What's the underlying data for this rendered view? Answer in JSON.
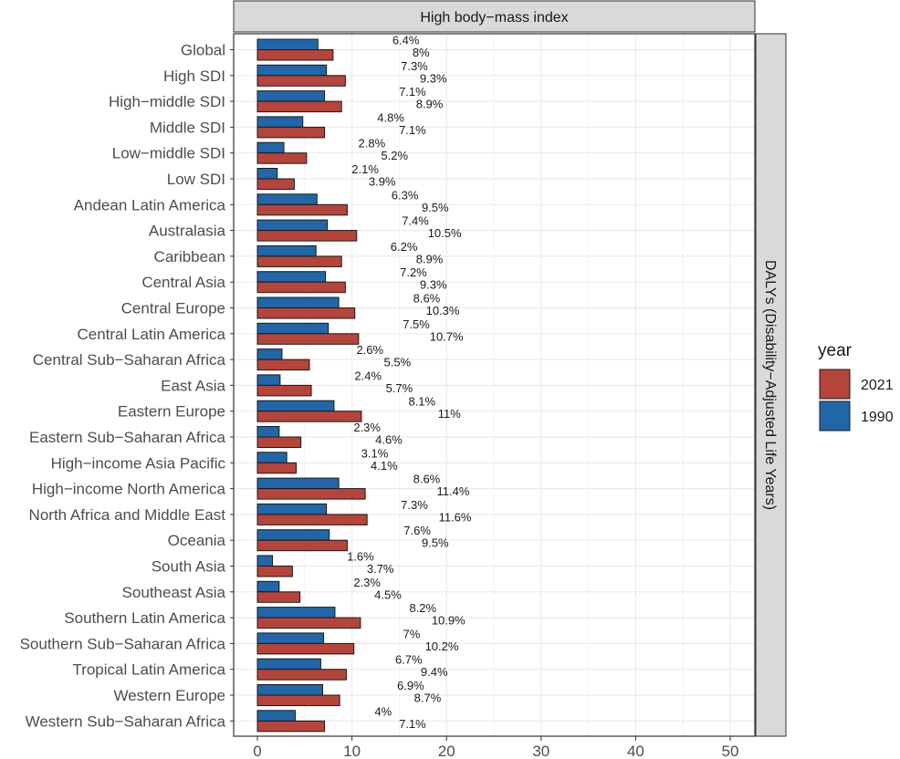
{
  "chart_data": {
    "type": "bar",
    "orientation": "horizontal",
    "facet_title": "High body−mass index",
    "strip_label": "DALYs (Disability−Adjusted Life Years)",
    "xlim": [
      0,
      52.5
    ],
    "xticks": [
      0,
      10,
      20,
      30,
      40,
      50
    ],
    "xtick_labels": [
      "0",
      "10",
      "20",
      "30",
      "40",
      "50"
    ],
    "grid": true,
    "legend": {
      "title": "year",
      "position": "right",
      "entries": [
        {
          "label": "2021",
          "color": "#B5443A"
        },
        {
          "label": "1990",
          "color": "#2166A8"
        }
      ]
    },
    "categories": [
      "Global",
      "High SDI",
      "High−middle SDI",
      "Middle SDI",
      "Low−middle SDI",
      "Low SDI",
      "Andean Latin America",
      "Australasia",
      "Caribbean",
      "Central Asia",
      "Central Europe",
      "Central Latin America",
      "Central Sub−Saharan Africa",
      "East Asia",
      "Eastern Europe",
      "Eastern Sub−Saharan Africa",
      "High−income Asia Pacific",
      "High−income North America",
      "North Africa and Middle East",
      "Oceania",
      "South Asia",
      "Southeast Asia",
      "Southern Latin America",
      "Southern Sub−Saharan Africa",
      "Tropical Latin America",
      "Western Europe",
      "Western Sub−Saharan Africa"
    ],
    "series": [
      {
        "name": "1990",
        "color": "#2166A8",
        "values": [
          6.4,
          7.3,
          7.1,
          4.8,
          2.8,
          2.1,
          6.3,
          7.4,
          6.2,
          7.2,
          8.6,
          7.5,
          2.6,
          2.4,
          8.1,
          2.3,
          3.1,
          8.6,
          7.3,
          7.6,
          1.6,
          2.3,
          8.2,
          7.0,
          6.7,
          6.9,
          4.0
        ],
        "labels": [
          "6.4%",
          "7.3%",
          "7.1%",
          "4.8%",
          "2.8%",
          "2.1%",
          "6.3%",
          "7.4%",
          "6.2%",
          "7.2%",
          "8.6%",
          "7.5%",
          "2.6%",
          "2.4%",
          "8.1%",
          "2.3%",
          "3.1%",
          "8.6%",
          "7.3%",
          "7.6%",
          "1.6%",
          "2.3%",
          "8.2%",
          "7%",
          "6.7%",
          "6.9%",
          "4%"
        ]
      },
      {
        "name": "2021",
        "color": "#B5443A",
        "values": [
          8.0,
          9.3,
          8.9,
          7.1,
          5.2,
          3.9,
          9.5,
          10.5,
          8.9,
          9.3,
          10.3,
          10.7,
          5.5,
          5.7,
          11.0,
          4.6,
          4.1,
          11.4,
          11.6,
          9.5,
          3.7,
          4.5,
          10.9,
          10.2,
          9.4,
          8.7,
          7.1
        ],
        "labels": [
          "8%",
          "9.3%",
          "8.9%",
          "7.1%",
          "5.2%",
          "3.9%",
          "9.5%",
          "10.5%",
          "8.9%",
          "9.3%",
          "10.3%",
          "10.7%",
          "5.5%",
          "5.7%",
          "11%",
          "4.6%",
          "4.1%",
          "11.4%",
          "11.6%",
          "9.5%",
          "3.7%",
          "4.5%",
          "10.9%",
          "10.2%",
          "9.4%",
          "8.7%",
          "7.1%"
        ]
      }
    ]
  }
}
